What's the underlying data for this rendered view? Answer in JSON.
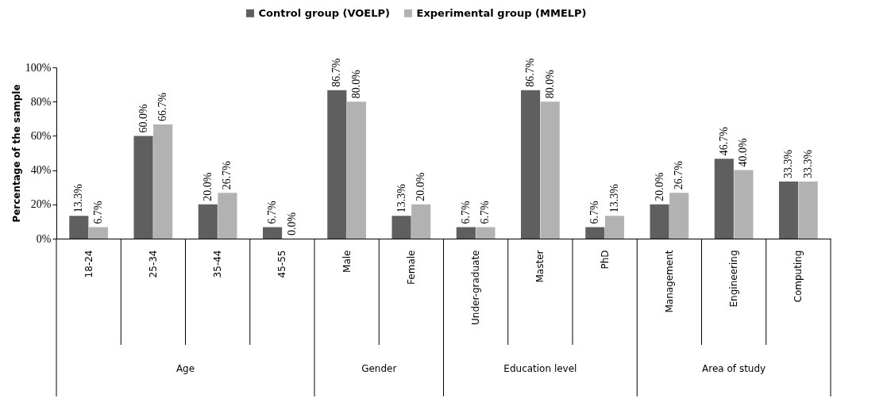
{
  "chart_data": {
    "type": "bar",
    "ylabel": "Percentage of the sample",
    "categories": [
      "18-24",
      "25-34",
      "35-44",
      "45-55",
      "Male",
      "Female",
      "Under-graduate",
      "Master",
      "PhD",
      "Management",
      "Engineering",
      "Computing"
    ],
    "series": [
      {
        "name": "Control group (VOELP)",
        "color": "#5f5f5f",
        "values": [
          13.3,
          60.0,
          20.0,
          6.7,
          86.7,
          13.3,
          6.7,
          86.7,
          6.7,
          20.0,
          46.7,
          33.3
        ],
        "value_labels": [
          "13.3%",
          "60.0%",
          "20.0%",
          "6.7%",
          "86.7%",
          "13.3%",
          "6.7%",
          "86.7%",
          "6.7%",
          "20.0%",
          "46.7%",
          "33.3%"
        ]
      },
      {
        "name": "Experimental group (MMELP)",
        "color": "#b2b2b2",
        "values": [
          6.7,
          66.7,
          26.7,
          0.0,
          80.0,
          20.0,
          6.7,
          80.0,
          13.3,
          26.7,
          40.0,
          33.3
        ],
        "value_labels": [
          "6.7%",
          "66.7%",
          "26.7%",
          "0.0%",
          "80.0%",
          "20.0%",
          "6.7%",
          "80.0%",
          "13.3%",
          "26.7%",
          "40.0%",
          "33.3%"
        ]
      }
    ],
    "ylim": [
      0,
      100
    ],
    "yticks": [
      {
        "value": 0,
        "label": "0%"
      },
      {
        "value": 20,
        "label": "20%"
      },
      {
        "value": 40,
        "label": "40%"
      },
      {
        "value": 60,
        "label": "60%"
      },
      {
        "value": 80,
        "label": "80%"
      },
      {
        "value": 100,
        "label": "100%"
      }
    ],
    "grid": false,
    "legend": "top",
    "annotations": [
      "Age",
      "Gender",
      "Education level",
      "Area of study"
    ]
  }
}
